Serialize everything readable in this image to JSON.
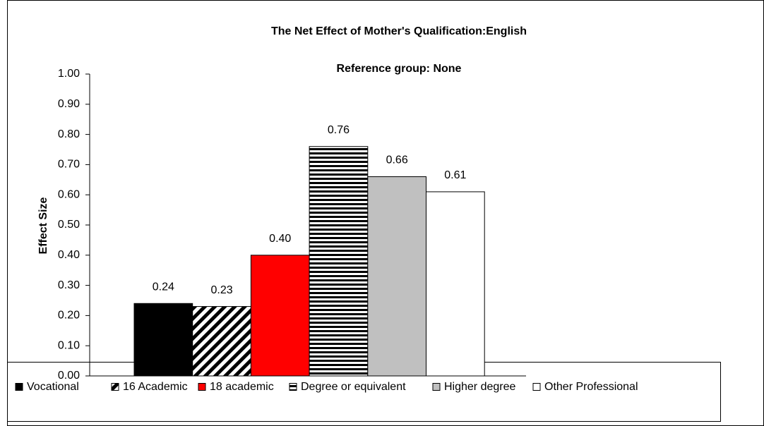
{
  "chart_data": {
    "type": "bar",
    "title": "The Net Effect of Mother's Qualification:English",
    "subtitle": "Reference group: None",
    "y_label": "Effect Size",
    "categories": [
      null
    ],
    "series": [
      {
        "name": "Vocational",
        "color": "#000000",
        "values": [
          0.24
        ],
        "value_labels": [
          "0.24"
        ]
      },
      {
        "name": "16 Academic",
        "color": "#000000",
        "pattern": "diagonal",
        "values": [
          0.23
        ],
        "value_labels": [
          "0.23"
        ]
      },
      {
        "name": "18 academic",
        "color": "#ff0000",
        "values": [
          0.4
        ],
        "value_labels": [
          "0.40"
        ]
      },
      {
        "name": "Degree or equivalent",
        "color": "#000000",
        "pattern": "horizontal",
        "values": [
          0.76
        ],
        "value_labels": [
          "0.76"
        ]
      },
      {
        "name": "Higher degree",
        "color": "#c0c0c0",
        "values": [
          0.66
        ],
        "value_labels": [
          "0.66"
        ]
      },
      {
        "name": "Other Professional",
        "color": "#ffffff",
        "values": [
          0.61
        ],
        "value_labels": [
          "0.61"
        ]
      }
    ],
    "ylim": [
      0,
      1
    ],
    "yticks": [
      {
        "value": 0,
        "label": "0.00"
      },
      {
        "value": 0.1,
        "label": "0.10"
      },
      {
        "value": 0.2,
        "label": "0.20"
      },
      {
        "value": 0.3,
        "label": "0.30"
      },
      {
        "value": 0.4,
        "label": "0.40"
      },
      {
        "value": 0.5,
        "label": "0.50"
      },
      {
        "value": 0.6,
        "label": "0.60"
      },
      {
        "value": 0.7,
        "label": "0.70"
      },
      {
        "value": 0.8,
        "label": "0.80"
      },
      {
        "value": 0.9,
        "label": "0.90"
      },
      {
        "value": 1,
        "label": "1.00"
      }
    ],
    "legend": "bottom"
  }
}
